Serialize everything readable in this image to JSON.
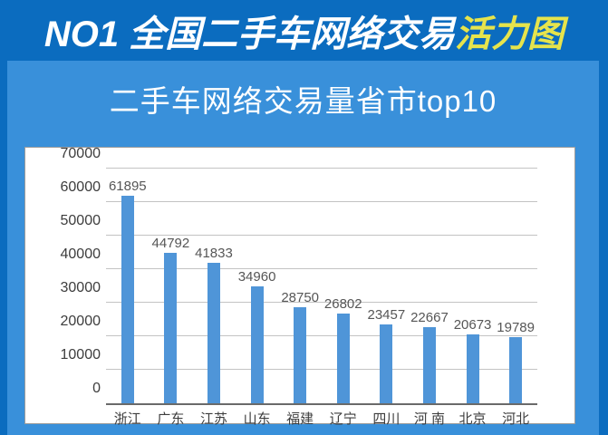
{
  "banner": {
    "title_white": "NO1 全国二手车网络交易",
    "title_yellow": "活力图"
  },
  "subtitle": "二手车网络交易量省市top10",
  "colors": {
    "page_background": "#0b6cbf",
    "panel_background": "#3990da",
    "title_white": "#ffffff",
    "title_yellow": "#e6e44c",
    "bar": "#4f95d8",
    "gridline": "#c3c3c3",
    "axis_line": "#6a6a6a",
    "tick_text": "#3d3d3d",
    "data_label_text": "#565656",
    "card_background": "#ffffff",
    "card_border": "#9c9c9c"
  },
  "chart_data": {
    "type": "bar",
    "title": "二手车网络交易量省市top10",
    "categories": [
      "浙江",
      "广东",
      "江苏",
      "山东",
      "福建",
      "辽宁",
      "四川",
      "河 南",
      "北京",
      "河北"
    ],
    "values": [
      61895,
      44792,
      41833,
      34960,
      28750,
      26802,
      23457,
      22667,
      20673,
      19789
    ],
    "xlabel": "",
    "ylabel": "",
    "ylim": [
      0,
      70000
    ],
    "ytick_step": 10000,
    "yticks": [
      "0",
      "10000",
      "20000",
      "30000",
      "40000",
      "50000",
      "60000",
      "70000"
    ],
    "grid": true,
    "legend": false,
    "data_labels": true
  }
}
